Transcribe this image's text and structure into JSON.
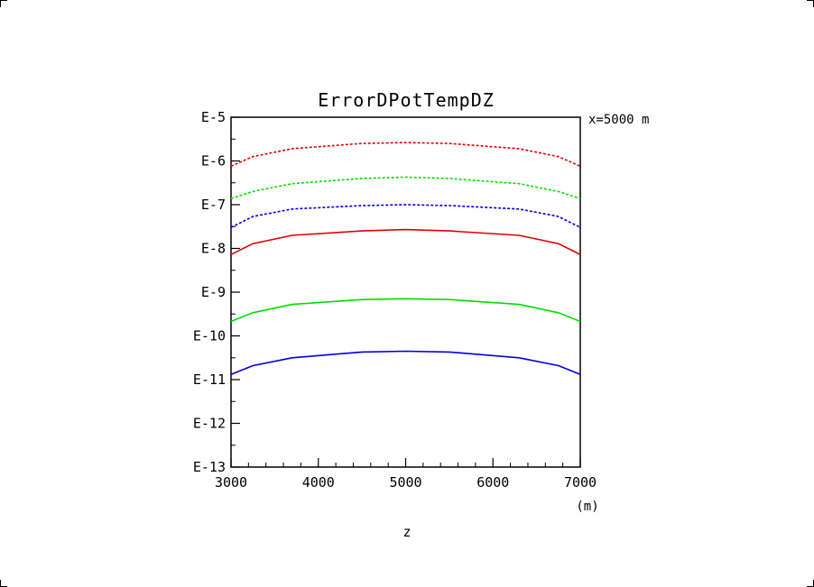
{
  "chart_data": {
    "type": "line",
    "title": "ErrorDPotTempDZ",
    "annotation": "x=5000 m",
    "xlabel": "z",
    "x_unit": "(m)",
    "xlim": [
      3000,
      7000
    ],
    "ylim": [
      -13,
      -5
    ],
    "y_scale": "log10",
    "grid": false,
    "x_ticks": [
      3000,
      4000,
      5000,
      6000,
      7000
    ],
    "x_tick_labels": [
      "3000",
      "4000",
      "5000",
      "6000",
      "7000"
    ],
    "y_ticks": [
      -5,
      -6,
      -7,
      -8,
      -9,
      -10,
      -11,
      -12,
      -13
    ],
    "y_tick_labels": [
      "E-5",
      "E-6",
      "E-7",
      "E-8",
      "E-9",
      "E-10",
      "E-11",
      "E-12",
      "E-13"
    ],
    "x": [
      3000,
      3250,
      3700,
      4500,
      5000,
      5500,
      6300,
      6750,
      7000
    ],
    "series": [
      {
        "color": "#e00000",
        "style": "dashed",
        "values": [
          -6.12,
          -5.9,
          -5.72,
          -5.6,
          -5.58,
          -5.6,
          -5.72,
          -5.9,
          -6.12
        ]
      },
      {
        "color": "#00e000",
        "style": "dashed",
        "values": [
          -6.86,
          -6.7,
          -6.52,
          -6.4,
          -6.37,
          -6.4,
          -6.52,
          -6.7,
          -6.86
        ]
      },
      {
        "color": "#0000e0",
        "style": "dashed",
        "values": [
          -7.52,
          -7.27,
          -7.1,
          -7.02,
          -7.0,
          -7.02,
          -7.1,
          -7.27,
          -7.52
        ]
      },
      {
        "color": "#e00000",
        "style": "solid",
        "values": [
          -8.14,
          -7.89,
          -7.7,
          -7.6,
          -7.57,
          -7.6,
          -7.7,
          -7.89,
          -8.14
        ]
      },
      {
        "color": "#00e000",
        "style": "solid",
        "values": [
          -9.67,
          -9.47,
          -9.28,
          -9.17,
          -9.15,
          -9.17,
          -9.28,
          -9.47,
          -9.67
        ]
      },
      {
        "color": "#0000e0",
        "style": "solid",
        "values": [
          -10.88,
          -10.68,
          -10.5,
          -10.37,
          -10.35,
          -10.37,
          -10.5,
          -10.68,
          -10.88
        ]
      }
    ]
  }
}
